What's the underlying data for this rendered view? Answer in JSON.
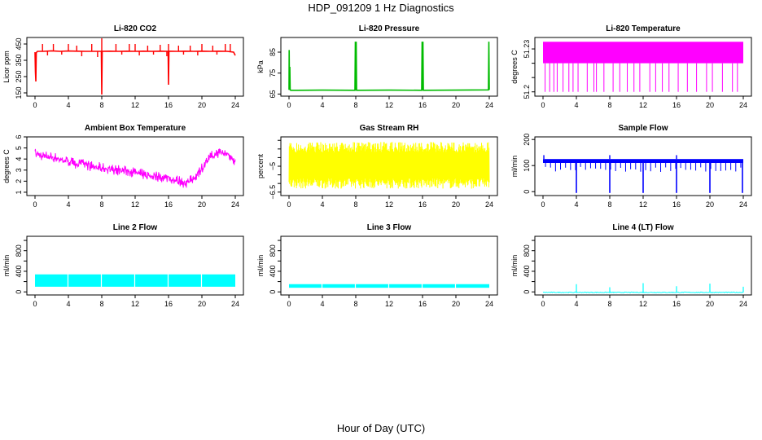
{
  "figure": {
    "title": "HDP_091209  1 Hz Diagnostics",
    "xlabel": "Hour of Day (UTC)"
  },
  "chart_data": [
    {
      "type": "line",
      "title": "Li-820 CO2",
      "ylabel": "Licor ppm",
      "color": "#ff0000",
      "xlim": [
        0,
        24
      ],
      "xticks": [
        0,
        4,
        8,
        12,
        16,
        20,
        24
      ],
      "ylim": [
        130,
        490
      ],
      "yticks": [
        150,
        250,
        350,
        450
      ],
      "series": [
        {
          "x": [
            0,
            0.05,
            0.1,
            0.15,
            0.2,
            0.3,
            1,
            2,
            3,
            4,
            5,
            6,
            7,
            7.95,
            8,
            8.05,
            9,
            10,
            11,
            12,
            13,
            14,
            15,
            15.95,
            16,
            16.05,
            17,
            18,
            19,
            20,
            21,
            22,
            23,
            23.8,
            24
          ],
          "y": [
            400,
            280,
            220,
            395,
            400,
            405,
            405,
            408,
            405,
            407,
            406,
            405,
            405,
            405,
            140,
            405,
            406,
            405,
            406,
            405,
            406,
            405,
            406,
            405,
            200,
            406,
            405,
            406,
            405,
            406,
            405,
            406,
            405,
            400,
            380
          ]
        }
      ],
      "spikes": {
        "x": [
          0.9,
          2.2,
          4.0,
          5.0,
          6.8,
          8.0,
          9.7,
          11.3,
          12.0,
          13.5,
          15.0,
          16.0,
          17.2,
          18.6,
          20.0,
          21.3,
          22.8,
          23.4
        ],
        "y": [
          450,
          450,
          450,
          440,
          450,
          485,
          450,
          450,
          450,
          440,
          445,
          450,
          440,
          440,
          450,
          440,
          450,
          450
        ]
      },
      "dips": {
        "x": [
          1.5,
          3.2,
          5.6,
          7.5,
          10.4,
          12.5,
          14.2,
          15.8,
          17.8,
          19.5,
          21.8
        ],
        "y": [
          380,
          385,
          375,
          370,
          385,
          380,
          385,
          375,
          385,
          380,
          385
        ]
      }
    },
    {
      "type": "line",
      "title": "Li-820 Pressure",
      "ylabel": "kPa",
      "color": "#00bb00",
      "xlim": [
        0,
        24
      ],
      "xticks": [
        0,
        4,
        8,
        12,
        16,
        20,
        24
      ],
      "ylim": [
        64,
        92
      ],
      "yticks": [
        65,
        75,
        85
      ],
      "series": [
        {
          "x": [
            0,
            0.02,
            0.06,
            0.1,
            0.14,
            0.2,
            1,
            4,
            7.9,
            7.95,
            8,
            8.05,
            8.1,
            12,
            15.9,
            15.95,
            16,
            16.05,
            16.1,
            20,
            23.9,
            23.95,
            24
          ],
          "y": [
            67,
            86,
            67,
            78,
            67,
            66.8,
            66.8,
            66.9,
            66.8,
            90,
            66.8,
            90,
            66.8,
            66.9,
            66.8,
            90,
            66.8,
            90,
            66.8,
            66.9,
            67,
            90,
            67
          ]
        }
      ]
    },
    {
      "type": "area",
      "title": "Li-820 Temperature",
      "ylabel": "degrees C",
      "color": "#ff00ff",
      "xlim": [
        0,
        24
      ],
      "xticks": [
        0,
        4,
        8,
        12,
        16,
        20,
        24
      ],
      "ylim": [
        51.197,
        51.238
      ],
      "yticks": [
        51.2,
        51.23
      ],
      "yticks_minor": [
        51.21,
        51.22
      ],
      "band": {
        "low": 51.22,
        "high": 51.235
      },
      "gaps": {
        "x": [
          0.25,
          0.8,
          1.3,
          1.7,
          2.4,
          3.1,
          3.6,
          4.2,
          5.3,
          6.1,
          6.4,
          7.3,
          8.4,
          9.2,
          10.1,
          10.9,
          11.6,
          12.8,
          13.5,
          14.3,
          15.1,
          16.2,
          17.3,
          18.4,
          19.6,
          20.3,
          21.5,
          22.7,
          23.3
        ],
        "low": 51.2
      }
    },
    {
      "type": "line",
      "title": "Ambient Box Temperature",
      "ylabel": "degrees C",
      "color": "#ff00ff",
      "xlim": [
        0,
        24
      ],
      "xticks": [
        0,
        4,
        8,
        12,
        16,
        20,
        24
      ],
      "ylim": [
        0.7,
        6
      ],
      "yticks": [
        1,
        2,
        3,
        4,
        5,
        6
      ],
      "series": [
        {
          "x": [
            0,
            1,
            2,
            3,
            4,
            5,
            6,
            7,
            8,
            9,
            10,
            11,
            12,
            13,
            14,
            15,
            16,
            17,
            18,
            19,
            20,
            21,
            22,
            23,
            24
          ],
          "y": [
            4.5,
            4.3,
            4.2,
            4.0,
            3.8,
            3.6,
            3.5,
            3.3,
            3.2,
            3.1,
            3.0,
            2.9,
            2.8,
            2.6,
            2.5,
            2.4,
            2.3,
            2.1,
            1.8,
            2.2,
            3.2,
            4.2,
            4.6,
            4.5,
            3.8
          ]
        }
      ],
      "noise": 0.7
    },
    {
      "type": "line",
      "title": "Gas Stream RH",
      "ylabel": "percent",
      "color": "#ffff00",
      "xlim": [
        0,
        24
      ],
      "xticks": [
        0,
        4,
        8,
        12,
        16,
        20,
        24
      ],
      "ylim": [
        -6.7,
        -3.3
      ],
      "yticks": [
        -6.5,
        -5.0
      ],
      "yticks_minor": [
        -6.0,
        -5.5,
        -4.5,
        -4.0,
        -3.5
      ],
      "band": {
        "center": -5.0,
        "low": -6.3,
        "high": -3.6
      }
    },
    {
      "type": "line",
      "title": "Sample Flow",
      "ylabel": "ml/min",
      "color": "#0000ff",
      "xlim": [
        0,
        24
      ],
      "xticks": [
        0,
        4,
        8,
        12,
        16,
        20,
        24
      ],
      "ylim": [
        -15,
        210
      ],
      "yticks": [
        0,
        100,
        200
      ],
      "band": {
        "low": 110,
        "high": 125
      },
      "drops": {
        "x": [
          4.0,
          8.0,
          12.0,
          16.0,
          20.0,
          23.9
        ],
        "y": [
          -5,
          -5,
          -5,
          -5,
          -5,
          -5
        ]
      },
      "peaks": {
        "x": [
          0.1,
          8.0,
          16.0
        ],
        "y": [
          140,
          140,
          140
        ]
      }
    },
    {
      "type": "area",
      "title": "Line 2 Flow",
      "ylabel": "ml/min",
      "color": "#00ffff",
      "xlim": [
        0,
        24
      ],
      "xticks": [
        0,
        4,
        8,
        12,
        16,
        20,
        24
      ],
      "ylim": [
        -60,
        1080
      ],
      "yticks": [
        0,
        200,
        400,
        600,
        800,
        1000
      ],
      "yticklabels": [
        "0",
        "",
        "400",
        "",
        "800",
        ""
      ],
      "band": {
        "low": 100,
        "high": 340
      },
      "gaps": {
        "x": [
          3.95,
          7.95,
          11.95,
          15.95,
          19.95
        ]
      }
    },
    {
      "type": "area",
      "title": "Line 3 Flow",
      "ylabel": "ml/min",
      "color": "#00ffff",
      "xlim": [
        0,
        24
      ],
      "xticks": [
        0,
        4,
        8,
        12,
        16,
        20,
        24
      ],
      "ylim": [
        -60,
        1080
      ],
      "yticks": [
        0,
        200,
        400,
        600,
        800,
        1000
      ],
      "yticklabels": [
        "0",
        "",
        "400",
        "",
        "800",
        ""
      ],
      "band": {
        "low": 80,
        "high": 150
      },
      "gaps": {
        "x": [
          3.95,
          7.95,
          11.95,
          15.95,
          19.95
        ]
      }
    },
    {
      "type": "line",
      "title": "Line 4 (LT) Flow",
      "ylabel": "ml/min",
      "color": "#00ffff",
      "xlim": [
        0,
        24
      ],
      "xticks": [
        0,
        4,
        8,
        12,
        16,
        20,
        24
      ],
      "ylim": [
        -60,
        1080
      ],
      "yticks": [
        0,
        200,
        400,
        600,
        800,
        1000
      ],
      "yticklabels": [
        "0",
        "",
        "400",
        "",
        "800",
        ""
      ],
      "base": -10,
      "peaks": {
        "x": [
          4.0,
          8.0,
          12.0,
          16.0,
          20.0,
          24.0
        ],
        "y": [
          150,
          90,
          170,
          110,
          160,
          100
        ]
      }
    }
  ]
}
